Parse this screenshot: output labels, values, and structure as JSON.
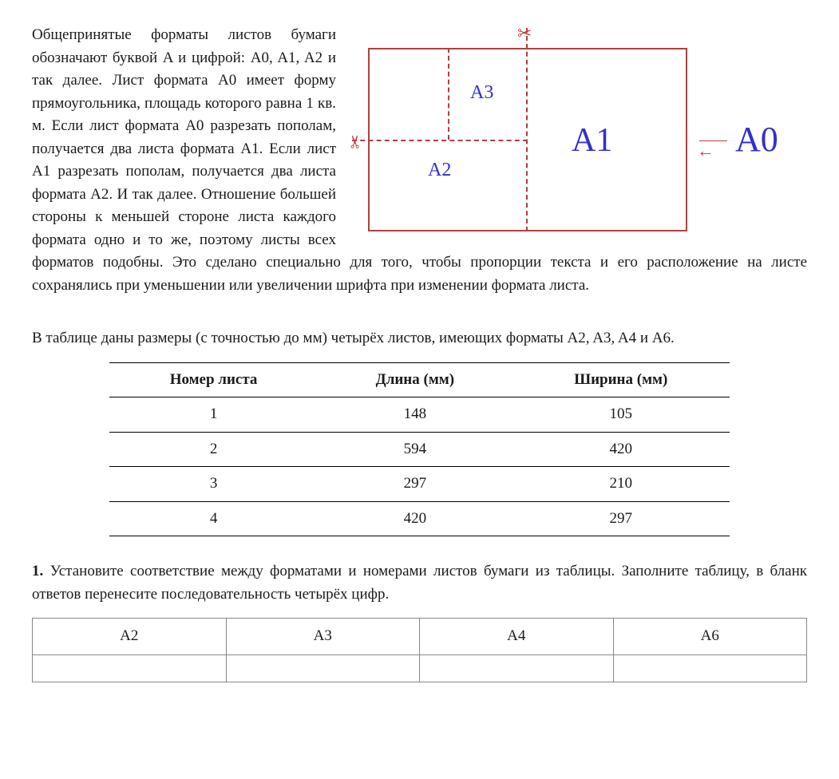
{
  "intro": {
    "paragraph1": "Общепринятые форматы листов бумаги обозначают буквой A и цифрой: A0, A1, A2 и так далее. Лист формата A0 имеет форму прямоугольника, площадь которого равна 1 кв. м. Если лист формата A0 разрезать пополам, получается два листа формата A1. Если лист A1 разрезать пополам, получается два листа формата A2. И так далее. Отношение большей стороны к меньшей стороне листа каждого формата одно и то же, поэтому листы всех форматов подобны. Это сделано специально для того, чтобы пропорции текста и его расположение на листе сохранялись при уменьшении или увеличении шрифта при изменении формата листа.",
    "table_intro": "В таблице даны размеры (с точностью до мм) четырёх листов, имеющих форматы A2, A3, A4 и A6."
  },
  "diagram": {
    "labels": {
      "a0": "A0",
      "a1": "A1",
      "a2": "A2",
      "a3": "A3"
    },
    "arrow": "←",
    "scissors": "✂",
    "colors": {
      "border": "#b04040",
      "label": "#3030d0",
      "scissors": "#c04040"
    }
  },
  "table": {
    "headers": [
      "Номер листа",
      "Длина (мм)",
      "Ширина (мм)"
    ],
    "rows": [
      [
        "1",
        "148",
        "105"
      ],
      [
        "2",
        "594",
        "420"
      ],
      [
        "3",
        "297",
        "210"
      ],
      [
        "4",
        "420",
        "297"
      ]
    ]
  },
  "task": {
    "number": "1.",
    "text": "Установите соответствие между форматами и номерами листов бумаги из таблицы. Заполните таблицу, в бланк ответов перенесите последовательность четырёх цифр."
  },
  "answer_table": {
    "headers": [
      "A2",
      "A3",
      "A4",
      "A6"
    ]
  }
}
